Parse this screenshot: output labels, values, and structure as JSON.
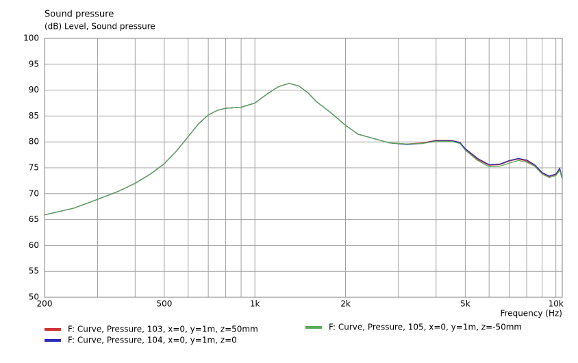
{
  "chart_data": {
    "type": "line",
    "title": "Sound pressure",
    "y_label": "(dB)  Level, Sound pressure",
    "x_label": "Frequency  (Hz)",
    "x_scale": "log",
    "xlim": [
      200,
      10500
    ],
    "ylim": [
      50,
      100
    ],
    "xticks": [
      200,
      500,
      {
        "value": 1000,
        "label": "1k"
      },
      {
        "value": 2000,
        "label": "2k"
      },
      {
        "value": 5000,
        "label": "5k"
      },
      {
        "value": 10000,
        "label": "10k"
      }
    ],
    "x_minor_grid": [
      300,
      400,
      600,
      700,
      800,
      900,
      3000,
      4000,
      6000,
      7000,
      8000,
      9000
    ],
    "yticks": [
      50,
      55,
      60,
      65,
      70,
      75,
      80,
      85,
      90,
      95,
      100
    ],
    "grid": true,
    "x": [
      200,
      250,
      300,
      350,
      400,
      450,
      500,
      550,
      600,
      650,
      700,
      750,
      800,
      900,
      1000,
      1100,
      1200,
      1300,
      1400,
      1500,
      1600,
      1800,
      2000,
      2200,
      2500,
      2800,
      3200,
      3600,
      4000,
      4500,
      4800,
      5000,
      5500,
      6000,
      6500,
      7000,
      7500,
      8000,
      8500,
      9000,
      9500,
      10000,
      10300,
      10500
    ],
    "series": [
      {
        "name": "F: Curve, Pressure, 103, x=0, y=1m, z=50mm",
        "color": "#d03434",
        "values": [
          65.9,
          67.2,
          68.9,
          70.4,
          72.0,
          73.8,
          75.8,
          78.3,
          81.0,
          83.5,
          85.2,
          86.1,
          86.5,
          86.7,
          87.5,
          89.3,
          90.7,
          91.3,
          90.8,
          89.5,
          87.8,
          85.5,
          83.2,
          81.5,
          80.6,
          79.8,
          79.6,
          79.8,
          80.3,
          80.3,
          79.9,
          78.6,
          76.6,
          75.5,
          75.6,
          76.3,
          76.7,
          76.3,
          75.4,
          74.0,
          73.3,
          73.7,
          74.8,
          72.9
        ]
      },
      {
        "name": "F: Curve, Pressure, 104, x=0, y=1m, z=0",
        "color": "#2b2bb8",
        "values": [
          65.9,
          67.2,
          68.9,
          70.4,
          72.0,
          73.8,
          75.8,
          78.3,
          81.0,
          83.5,
          85.2,
          86.1,
          86.5,
          86.7,
          87.5,
          89.3,
          90.7,
          91.3,
          90.8,
          89.5,
          87.8,
          85.5,
          83.2,
          81.5,
          80.6,
          79.8,
          79.5,
          79.7,
          80.2,
          80.2,
          79.9,
          78.7,
          76.8,
          75.6,
          75.7,
          76.4,
          76.8,
          76.5,
          75.6,
          74.1,
          73.4,
          73.8,
          74.9,
          72.9
        ]
      },
      {
        "name": "F: Curve, Pressure, 105, x=0, y=1m, z=-50mm",
        "color": "#5aaa5a",
        "values": [
          65.9,
          67.2,
          68.9,
          70.4,
          72.0,
          73.8,
          75.8,
          78.3,
          81.0,
          83.5,
          85.2,
          86.1,
          86.5,
          86.7,
          87.5,
          89.3,
          90.7,
          91.3,
          90.8,
          89.5,
          87.8,
          85.5,
          83.2,
          81.5,
          80.6,
          79.8,
          79.6,
          79.7,
          80.1,
          80.1,
          79.7,
          78.4,
          76.4,
          75.2,
          75.3,
          75.9,
          76.4,
          76.1,
          75.3,
          73.8,
          73.1,
          73.5,
          74.5,
          72.8
        ]
      }
    ]
  }
}
